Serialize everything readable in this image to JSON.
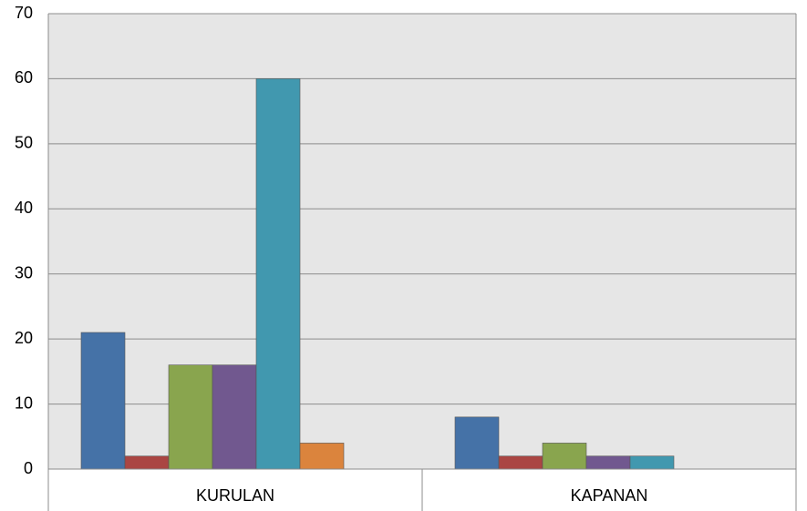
{
  "chart_data": {
    "type": "bar",
    "categories": [
      "KURULAN",
      "KAPANAN"
    ],
    "series": [
      {
        "color": "#4572a7",
        "values": [
          21,
          8
        ]
      },
      {
        "color": "#aa4643",
        "values": [
          2,
          2
        ]
      },
      {
        "color": "#89a54e",
        "values": [
          16,
          4
        ]
      },
      {
        "color": "#71588f",
        "values": [
          16,
          2
        ]
      },
      {
        "color": "#4198af",
        "values": [
          60,
          2
        ]
      },
      {
        "color": "#db843d",
        "values": [
          4,
          0
        ]
      }
    ],
    "ylim": [
      0,
      70
    ],
    "yticks": [
      0,
      10,
      20,
      30,
      40,
      50,
      60,
      70
    ],
    "grid": true
  }
}
